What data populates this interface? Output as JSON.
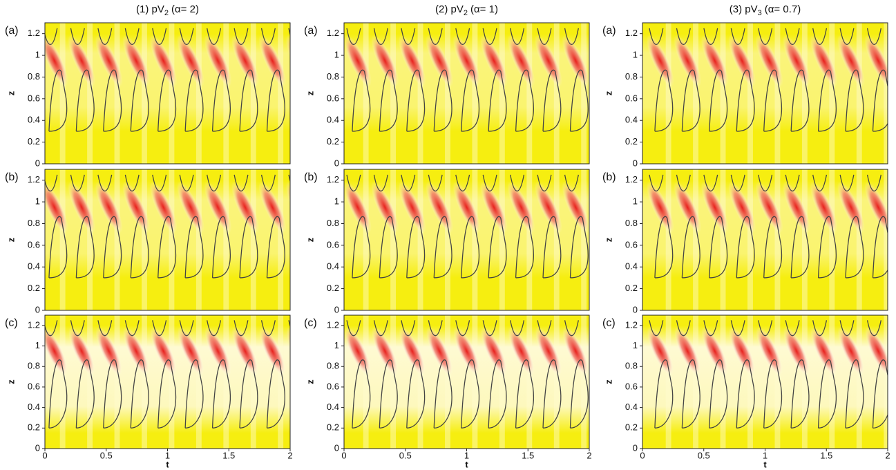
{
  "chart_data": [
    {
      "type": "heatmap",
      "title": "(1) pV",
      "title_subscript": "2",
      "title_suffix": "(α= 2)",
      "panel": "(a)",
      "ylabel": "z",
      "xlim": [
        0,
        2
      ],
      "ylim": [
        0,
        1.3
      ],
      "yticks": [
        0,
        0.2,
        0.4,
        0.6,
        0.8,
        1,
        1.2
      ]
    },
    {
      "type": "heatmap",
      "panel": "(b)",
      "ylabel": "z",
      "xlim": [
        0,
        2
      ],
      "ylim": [
        0,
        1.3
      ],
      "yticks": [
        0,
        0.2,
        0.4,
        0.6,
        0.8,
        1,
        1.2
      ]
    },
    {
      "type": "heatmap",
      "panel": "(c)",
      "ylabel": "z",
      "xlabel": "t",
      "xlim": [
        0,
        2
      ],
      "xticks": [
        0,
        0.5,
        1,
        1.5,
        2
      ],
      "ylim": [
        0,
        1.3
      ],
      "yticks": [
        0,
        0.2,
        0.4,
        0.6,
        0.8,
        1,
        1.2
      ]
    },
    {
      "type": "heatmap",
      "title": "(2) pV",
      "title_subscript": "2",
      "title_suffix": "(α= 1)",
      "panel": "(a)",
      "ylabel": "z",
      "xlim": [
        0,
        2
      ],
      "ylim": [
        0,
        1.3
      ],
      "yticks": [
        0,
        0.2,
        0.4,
        0.6,
        0.8,
        1,
        1.2
      ]
    },
    {
      "type": "heatmap",
      "panel": "(b)",
      "ylabel": "z",
      "xlim": [
        0,
        2
      ],
      "ylim": [
        0,
        1.3
      ],
      "yticks": [
        0,
        0.2,
        0.4,
        0.6,
        0.8,
        1,
        1.2
      ]
    },
    {
      "type": "heatmap",
      "panel": "(c)",
      "ylabel": "z",
      "xlabel": "t",
      "xlim": [
        0,
        2
      ],
      "xticks": [
        0,
        0.5,
        1,
        1.5,
        2
      ],
      "ylim": [
        0,
        1.3
      ],
      "yticks": [
        0,
        0.2,
        0.4,
        0.6,
        0.8,
        1,
        1.2
      ]
    },
    {
      "type": "heatmap",
      "title": "(3) pV",
      "title_subscript": "3",
      "title_suffix": "(α= 0.7)",
      "panel": "(a)",
      "ylabel": "z",
      "xlim": [
        0,
        2
      ],
      "ylim": [
        0,
        1.3
      ],
      "yticks": [
        0,
        0.2,
        0.4,
        0.6,
        0.8,
        1,
        1.2
      ]
    },
    {
      "type": "heatmap",
      "panel": "(b)",
      "ylabel": "z",
      "xlim": [
        0,
        2
      ],
      "ylim": [
        0,
        1.3
      ],
      "yticks": [
        0,
        0.2,
        0.4,
        0.6,
        0.8,
        1,
        1.2
      ]
    },
    {
      "type": "heatmap",
      "panel": "(c)",
      "ylabel": "z",
      "xlabel": "t",
      "xlim": [
        0,
        2
      ],
      "xticks": [
        0,
        0.5,
        1,
        1.5,
        2
      ],
      "ylim": [
        0,
        1.3
      ],
      "yticks": [
        0,
        0.2,
        0.4,
        0.6,
        0.8,
        1,
        1.2
      ]
    }
  ]
}
